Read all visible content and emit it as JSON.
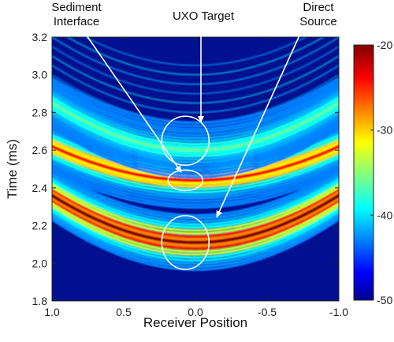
{
  "chart_data": {
    "type": "heatmap",
    "title": "",
    "xlabel": "Receiver Position",
    "ylabel": "Time (ms)",
    "xlim": [
      1.0,
      -1.0
    ],
    "ylim": [
      1.8,
      3.2
    ],
    "x_ticks": [
      "1.0",
      "0.5",
      "0.0",
      "-0.5",
      "-1.0"
    ],
    "x_tick_values": [
      1.0,
      0.5,
      0.0,
      -0.5,
      -1.0
    ],
    "y_ticks": [
      "1.8",
      "2.0",
      "2.2",
      "2.4",
      "2.6",
      "2.8",
      "3.0",
      "3.2"
    ],
    "y_tick_values": [
      1.8,
      2.0,
      2.2,
      2.4,
      2.6,
      2.8,
      3.0,
      3.2
    ],
    "colorbar": {
      "ticks": [
        "-20",
        "-30",
        "-40",
        "-50"
      ],
      "tick_values": [
        -20,
        -30,
        -40,
        -50
      ],
      "range": [
        -50,
        -20
      ]
    },
    "colormap": "jet",
    "arrivals": [
      {
        "apex_time": 2.11,
        "edge_time": 2.36,
        "level": -20
      },
      {
        "apex_time": 2.44,
        "edge_time": 2.62,
        "level": -24
      },
      {
        "apex_time": 2.6,
        "edge_time": 2.85,
        "level": -36
      }
    ],
    "annotations": [
      {
        "label": "Sediment\nInterface",
        "target_x": 0.07,
        "target_y": 2.44
      },
      {
        "label": "UXO Target",
        "target_x": 0.07,
        "target_y": 2.65
      },
      {
        "label": "Direct\nSource",
        "target_x": 0.07,
        "target_y": 2.11
      }
    ]
  }
}
